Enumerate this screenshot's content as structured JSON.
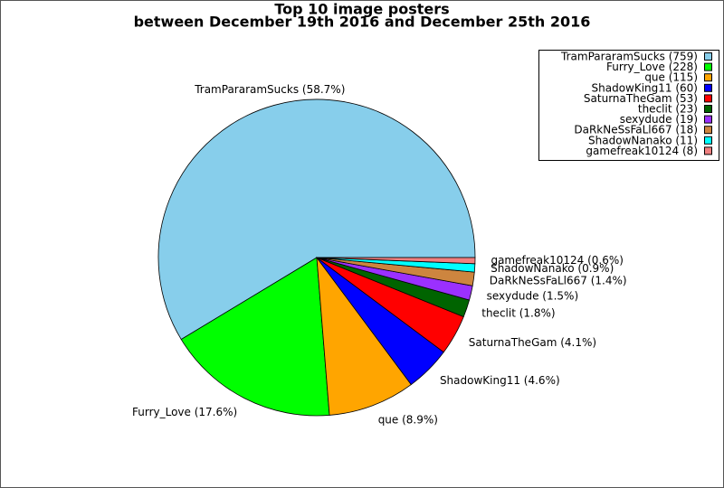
{
  "chart_data": {
    "type": "pie",
    "title": [
      "Top 10 image posters",
      "between December 19th 2016 and December 25th 2016"
    ],
    "legend_labels": [
      "TramPararamSucks (759)",
      "Furry_Love (228)",
      "que (115)",
      "ShadowKing11 (60)",
      "SaturnaTheGam (53)",
      "theclit (23)",
      "sexydude (19)",
      "DaRkNeSsFaLl667 (18)",
      "ShadowNanako (11)",
      "gamefreak10124 (8)"
    ],
    "values": [
      759,
      228,
      115,
      60,
      53,
      23,
      19,
      18,
      11,
      8
    ],
    "slice_labels": [
      "TramPararamSucks (58.7%)",
      "Furry_Love (17.6%)",
      "que (8.9%)",
      "ShadowKing11 (4.6%)",
      "SaturnaTheGam (4.1%)",
      "theclit (1.8%)",
      "sexydude (1.5%)",
      "DaRkNeSsFaLl667 (1.4%)",
      "ShadowNanako (0.9%)",
      "gamefreak10124 (0.6%)"
    ],
    "colors": [
      "#87ceeb",
      "#00ff00",
      "#ffa500",
      "#0000ff",
      "#ff0000",
      "#006400",
      "#9b30ff",
      "#cd853f",
      "#00ffff",
      "#f08080"
    ],
    "legend_position": "upper right"
  }
}
